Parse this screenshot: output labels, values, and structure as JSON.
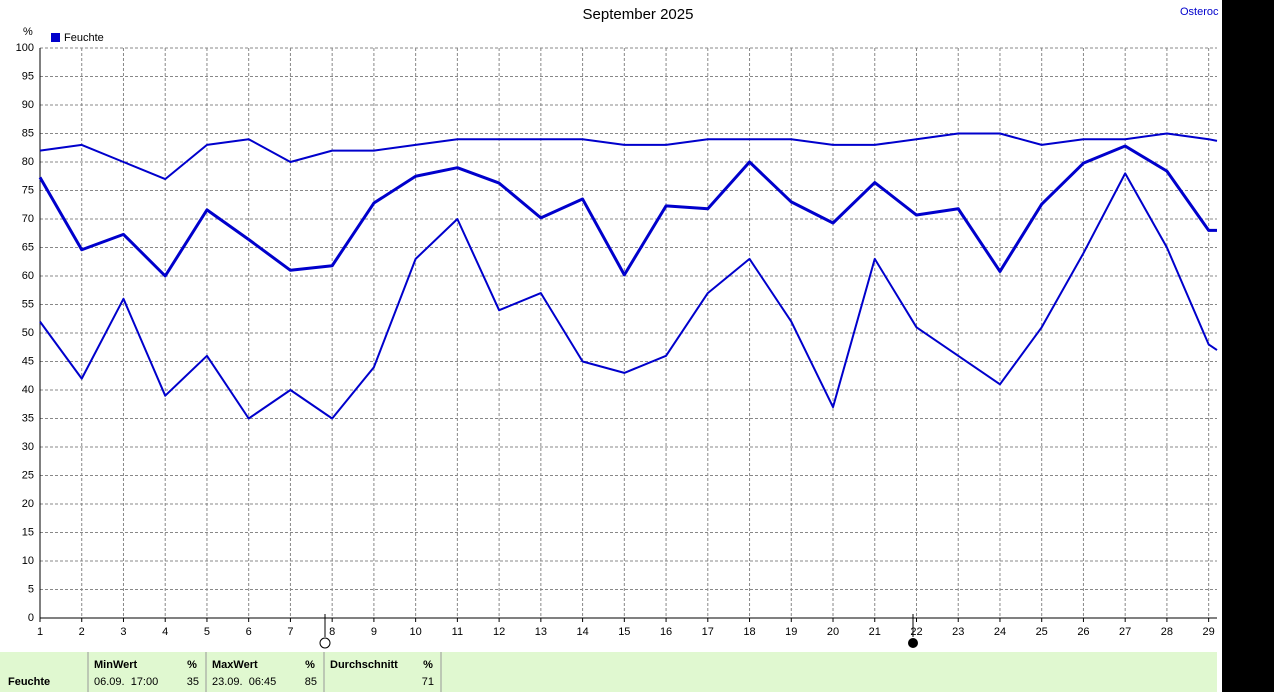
{
  "chart_data": {
    "type": "line",
    "title": "September 2025",
    "station": "Osteroc",
    "y_unit": "%",
    "x": [
      1,
      2,
      3,
      4,
      5,
      6,
      7,
      8,
      9,
      10,
      11,
      12,
      13,
      14,
      15,
      16,
      17,
      18,
      19,
      20,
      21,
      22,
      23,
      24,
      25,
      26,
      27,
      28,
      29,
      29.2
    ],
    "xlim": [
      1,
      29.2
    ],
    "xticks": [
      1,
      2,
      3,
      4,
      5,
      6,
      7,
      8,
      9,
      10,
      11,
      12,
      13,
      14,
      15,
      16,
      17,
      18,
      19,
      20,
      21,
      22,
      23,
      24,
      25,
      26,
      27,
      28,
      29
    ],
    "ylim": [
      0,
      100
    ],
    "yticks": [
      0,
      5,
      10,
      15,
      20,
      25,
      30,
      35,
      40,
      45,
      50,
      55,
      60,
      65,
      70,
      75,
      80,
      85,
      90,
      95,
      100
    ],
    "grid": true,
    "series": [
      {
        "name": "Feuchte",
        "color": "#0000cc",
        "line_width": 3,
        "values": [
          77.3,
          64.6,
          67.3,
          60,
          71.6,
          66.4,
          61,
          61.8,
          72.8,
          77.5,
          79,
          76.3,
          70.2,
          73.5,
          60.2,
          72.3,
          71.8,
          80,
          73,
          69.3,
          76.4,
          70.7,
          71.8,
          60.8,
          72.6,
          79.8,
          82.8,
          78.4,
          68,
          68
        ]
      },
      {
        "color": "#0000cc",
        "line_width": 2,
        "values": [
          82,
          83,
          80,
          77,
          83,
          84,
          80,
          82,
          82,
          83,
          84,
          84,
          84,
          84,
          83,
          83,
          84,
          84,
          84,
          83,
          83,
          84,
          85,
          85,
          83,
          84,
          84,
          85,
          84,
          83.7
        ]
      },
      {
        "color": "#0000cc",
        "line_width": 2,
        "values": [
          52,
          42,
          56,
          39,
          46,
          35,
          40,
          35,
          44,
          63,
          70,
          54,
          57,
          45,
          43,
          46,
          57,
          63,
          52,
          37,
          63,
          51,
          46,
          41,
          51,
          64,
          78,
          65,
          48,
          47
        ]
      }
    ],
    "summary": {
      "row_label": "Feuchte",
      "columns": [
        {
          "header": "MinWert",
          "unit": "%",
          "time": "06.09.  17:00",
          "value": 35
        },
        {
          "header": "MaxWert",
          "unit": "%",
          "time": "23.09.  06:45",
          "value": 85
        },
        {
          "header": "Durchschnitt",
          "unit": "%",
          "value": 71
        }
      ]
    }
  }
}
